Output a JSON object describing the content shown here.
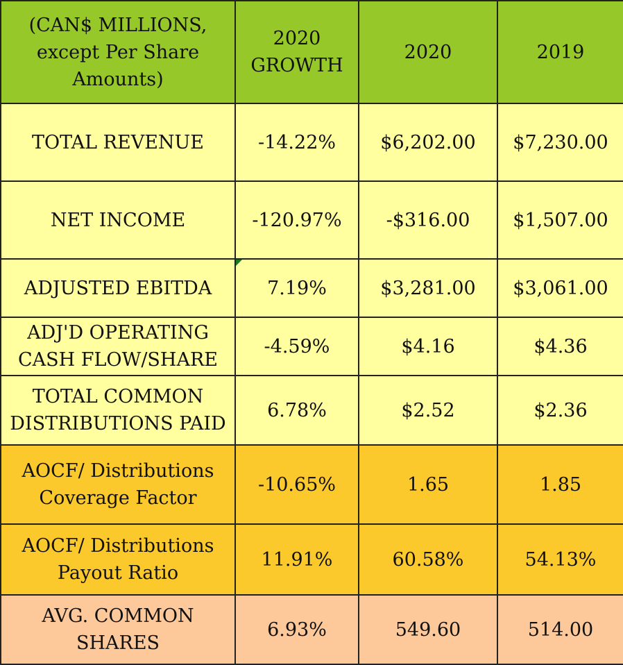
{
  "chart_data": {
    "type": "table",
    "header": {
      "label_lines": [
        "(CAN$ MILLIONS,",
        "except  Per Share",
        "Amounts)"
      ],
      "growth_lines": [
        "2020",
        "GROWTH"
      ],
      "col_2020": "2020",
      "col_2019": "2019"
    },
    "rows": [
      {
        "label_lines": [
          "TOTAL REVENUE"
        ],
        "growth": "-14.22%",
        "v2020": "$6,202.00",
        "v2019": "$7,230.00"
      },
      {
        "label_lines": [
          "NET INCOME"
        ],
        "growth": "-120.97%",
        "v2020": "-$316.00",
        "v2019": "$1,507.00"
      },
      {
        "label_lines": [
          "ADJUSTED EBITDA"
        ],
        "growth": "7.19%",
        "v2020": "$3,281.00",
        "v2019": "$3,061.00"
      },
      {
        "label_lines": [
          "ADJ'D OPERATING",
          "CASH FLOW/SHARE"
        ],
        "growth": "-4.59%",
        "v2020": "$4.16",
        "v2019": "$4.36"
      },
      {
        "label_lines": [
          "TOTAL COMMON",
          "DISTRIBUTIONS PAID"
        ],
        "growth": "6.78%",
        "v2020": "$2.52",
        "v2019": "$2.36"
      },
      {
        "label_lines": [
          "AOCF/ Distributions",
          "Coverage Factor"
        ],
        "growth": "-10.65%",
        "v2020": "1.65",
        "v2019": "1.85"
      },
      {
        "label_lines": [
          "AOCF/ Distributions",
          "Payout Ratio"
        ],
        "growth": "11.91%",
        "v2020": "60.58%",
        "v2019": "54.13%"
      },
      {
        "label_lines": [
          "AVG. COMMON SHARES"
        ],
        "growth": "6.93%",
        "v2020": "549.60",
        "v2019": "514.00"
      }
    ],
    "colors": {
      "header": "#97c82a",
      "main_rows": "#ffff9f",
      "ratio_rows": "#fbc92b",
      "shares_row": "#fdc89a"
    }
  }
}
